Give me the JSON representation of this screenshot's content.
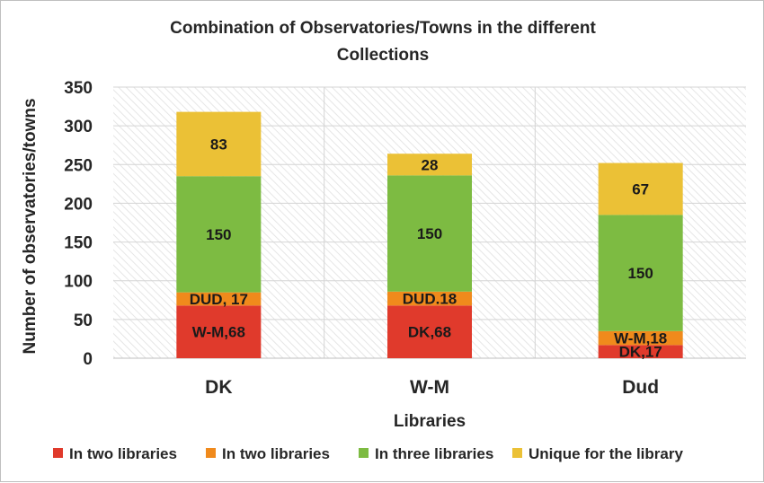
{
  "chart_data": {
    "type": "bar",
    "stacked": true,
    "title_line1": "Combination of Observatories/Towns in the different",
    "title_line2": "Collections",
    "xlabel": "Libraries",
    "ylabel": "Number of observatories/towns",
    "ylim": [
      0,
      350
    ],
    "yticks": [
      0,
      50,
      100,
      150,
      200,
      250,
      300,
      350
    ],
    "grid": true,
    "legend_position": "bottom",
    "categories": [
      "DK",
      "W-M",
      "Dud"
    ],
    "series": [
      {
        "name": "In two libraries",
        "color": "#e03a2c",
        "values": [
          68,
          68,
          17
        ],
        "labels": [
          "W-M,68",
          "DK,68",
          "DK,17"
        ]
      },
      {
        "name": "In two libraries",
        "color": "#f08a1c",
        "values": [
          17,
          18,
          18
        ],
        "labels": [
          "DUD, 17",
          "DUD.18",
          "W-M,18"
        ]
      },
      {
        "name": "In three libraries",
        "color": "#7dbb42",
        "values": [
          150,
          150,
          150
        ],
        "labels": [
          "150",
          "150",
          "150"
        ]
      },
      {
        "name": "Unique for the library",
        "color": "#ebc136",
        "values": [
          83,
          28,
          67
        ],
        "labels": [
          "83",
          "28",
          "67"
        ]
      }
    ]
  }
}
